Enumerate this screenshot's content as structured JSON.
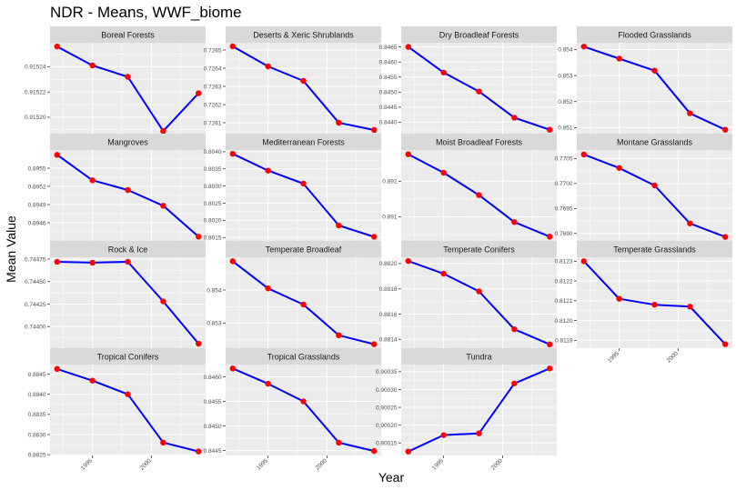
{
  "title": "NDR - Means, WWF_biome",
  "xlabel": "Year",
  "ylabel": "Mean Value",
  "x_tick_labels": [
    "1995",
    "2000"
  ],
  "colors": {
    "line": "#0000ff",
    "point": "#ff0000",
    "panel_bg": "#ebebeb",
    "strip_bg": "#d9d9d9",
    "grid": "#ffffff"
  },
  "chart_data": {
    "type": "line",
    "facet_by": "WWF_biome",
    "x": [
      1992,
      1995,
      1998,
      2001,
      2004
    ],
    "xlim": [
      1991.4,
      2004.6
    ],
    "x_ticks": [
      1995,
      2000
    ],
    "facets": [
      {
        "name": "Boreal Forests",
        "values": [
          0.915256,
          0.915241,
          0.915232,
          0.915189,
          0.915219
        ],
        "ylim": [
          0.915187,
          0.915259
        ],
        "y_ticks": [
          {
            "value": 0.9152,
            "label": "0.91520"
          },
          {
            "value": 0.91522,
            "label": "0.91522"
          },
          {
            "value": 0.91524,
            "label": "0.91524"
          }
        ]
      },
      {
        "name": "Deserts & Xeric Shrublands",
        "values": [
          0.72652,
          0.72641,
          0.72633,
          0.7261,
          0.72606
        ],
        "ylim": [
          0.72604,
          0.72654
        ],
        "y_ticks": [
          {
            "value": 0.7261,
            "label": "0.7261"
          },
          {
            "value": 0.7262,
            "label": "0.7262"
          },
          {
            "value": 0.7263,
            "label": "0.7263"
          },
          {
            "value": 0.7264,
            "label": "0.7264"
          },
          {
            "value": 0.7265,
            "label": "0.7265"
          }
        ]
      },
      {
        "name": "Dry Broadleaf Forests",
        "values": [
          0.8465,
          0.84565,
          0.84502,
          0.84415,
          0.84375
        ],
        "ylim": [
          0.84362,
          0.84664
        ],
        "y_ticks": [
          {
            "value": 0.844,
            "label": "0.8440"
          },
          {
            "value": 0.8445,
            "label": "0.8445"
          },
          {
            "value": 0.845,
            "label": "0.8450"
          },
          {
            "value": 0.8455,
            "label": "0.8455"
          },
          {
            "value": 0.846,
            "label": "0.8460"
          },
          {
            "value": 0.8465,
            "label": "0.8465"
          }
        ]
      },
      {
        "name": "Flooded Grasslands",
        "values": [
          0.85411,
          0.85365,
          0.85319,
          0.85155,
          0.85092
        ],
        "ylim": [
          0.85077,
          0.85426
        ],
        "y_ticks": [
          {
            "value": 0.851,
            "label": "0.851"
          },
          {
            "value": 0.852,
            "label": "0.852"
          },
          {
            "value": 0.853,
            "label": "0.853"
          },
          {
            "value": 0.854,
            "label": "0.854"
          }
        ]
      },
      {
        "name": "Mangroves",
        "values": [
          0.89572,
          0.8953,
          0.89514,
          0.89488,
          0.89437
        ],
        "ylim": [
          0.8943,
          0.8958
        ],
        "y_ticks": [
          {
            "value": 0.8946,
            "label": "0.8946"
          },
          {
            "value": 0.8949,
            "label": "0.8949"
          },
          {
            "value": 0.8952,
            "label": "0.8952"
          },
          {
            "value": 0.8955,
            "label": "0.8955"
          }
        ]
      },
      {
        "name": "Mediterranean Forests",
        "values": [
          0.80394,
          0.80345,
          0.80307,
          0.80185,
          0.80152
        ],
        "ylim": [
          0.8014,
          0.80405
        ],
        "y_ticks": [
          {
            "value": 0.8015,
            "label": "0.8015"
          },
          {
            "value": 0.802,
            "label": "0.8020"
          },
          {
            "value": 0.8025,
            "label": "0.8025"
          },
          {
            "value": 0.803,
            "label": "0.8030"
          },
          {
            "value": 0.8035,
            "label": "0.8035"
          },
          {
            "value": 0.804,
            "label": "0.8040"
          }
        ]
      },
      {
        "name": "Moist Broadleaf Forests",
        "values": [
          0.89276,
          0.89224,
          0.89161,
          0.89085,
          0.89044
        ],
        "ylim": [
          0.89032,
          0.89288
        ],
        "y_ticks": [
          {
            "value": 0.891,
            "label": "0.891"
          },
          {
            "value": 0.892,
            "label": "0.892"
          }
        ]
      },
      {
        "name": "Montane Grasslands",
        "values": [
          0.77058,
          0.77031,
          0.76996,
          0.7692,
          0.76893
        ],
        "ylim": [
          0.76885,
          0.77067
        ],
        "y_ticks": [
          {
            "value": 0.769,
            "label": "0.7690"
          },
          {
            "value": 0.7695,
            "label": "0.7695"
          },
          {
            "value": 0.77,
            "label": "0.7700"
          },
          {
            "value": 0.7705,
            "label": "0.7705"
          }
        ]
      },
      {
        "name": "Rock & Ice",
        "values": [
          0.74472,
          0.74471,
          0.74472,
          0.74428,
          0.74381
        ],
        "ylim": [
          0.74376,
          0.74477
        ],
        "y_ticks": [
          {
            "value": 0.744,
            "label": "0.74400"
          },
          {
            "value": 0.74425,
            "label": "0.74425"
          },
          {
            "value": 0.7445,
            "label": "0.74450"
          },
          {
            "value": 0.74475,
            "label": "0.74475"
          }
        ]
      },
      {
        "name": "Temperate Broadleaf",
        "values": [
          0.85487,
          0.85405,
          0.85356,
          0.85263,
          0.85236
        ],
        "ylim": [
          0.85224,
          0.85499
        ],
        "y_ticks": [
          {
            "value": 0.853,
            "label": "0.853"
          },
          {
            "value": 0.854,
            "label": "0.854"
          }
        ]
      },
      {
        "name": "Temperate Conifers",
        "values": [
          0.88202,
          0.88192,
          0.88178,
          0.88148,
          0.88136
        ],
        "ylim": [
          0.88133,
          0.88205
        ],
        "y_ticks": [
          {
            "value": 0.8814,
            "label": "0.8814"
          },
          {
            "value": 0.8816,
            "label": "0.8816"
          },
          {
            "value": 0.8818,
            "label": "0.8818"
          },
          {
            "value": 0.882,
            "label": "0.8820"
          }
        ]
      },
      {
        "name": "Temperate Grasslands",
        "values": [
          0.8123,
          0.81211,
          0.81208,
          0.81207,
          0.81188
        ],
        "ylim": [
          0.81186,
          0.81232
        ],
        "y_ticks": [
          {
            "value": 0.8119,
            "label": "0.8119"
          },
          {
            "value": 0.812,
            "label": "0.8120"
          },
          {
            "value": 0.8121,
            "label": "0.8121"
          },
          {
            "value": 0.8122,
            "label": "0.8122"
          },
          {
            "value": 0.8123,
            "label": "0.8123"
          }
        ]
      },
      {
        "name": "Tropical Conifers",
        "values": [
          0.88463,
          0.88434,
          0.884,
          0.8828,
          0.88258
        ],
        "ylim": [
          0.88248,
          0.88474
        ],
        "y_ticks": [
          {
            "value": 0.8825,
            "label": "0.8825"
          },
          {
            "value": 0.883,
            "label": "0.8830"
          },
          {
            "value": 0.8835,
            "label": "0.8835"
          },
          {
            "value": 0.884,
            "label": "0.8840"
          },
          {
            "value": 0.8845,
            "label": "0.8845"
          }
        ]
      },
      {
        "name": "Tropical Grasslands",
        "values": [
          0.84617,
          0.84586,
          0.8455,
          0.84466,
          0.84449
        ],
        "ylim": [
          0.8444,
          0.84625
        ],
        "y_ticks": [
          {
            "value": 0.8445,
            "label": "0.8445"
          },
          {
            "value": 0.845,
            "label": "0.8450"
          },
          {
            "value": 0.8455,
            "label": "0.8455"
          },
          {
            "value": 0.846,
            "label": "0.8460"
          }
        ]
      },
      {
        "name": "Tundra",
        "values": [
          0.900126,
          0.900172,
          0.900177,
          0.900317,
          0.900359
        ],
        "ylim": [
          0.900115,
          0.90037
        ],
        "y_ticks": [
          {
            "value": 0.90015,
            "label": "0.90015"
          },
          {
            "value": 0.9002,
            "label": "0.90020"
          },
          {
            "value": 0.90025,
            "label": "0.90025"
          },
          {
            "value": 0.9003,
            "label": "0.90030"
          },
          {
            "value": 0.90035,
            "label": "0.90035"
          }
        ]
      }
    ]
  }
}
